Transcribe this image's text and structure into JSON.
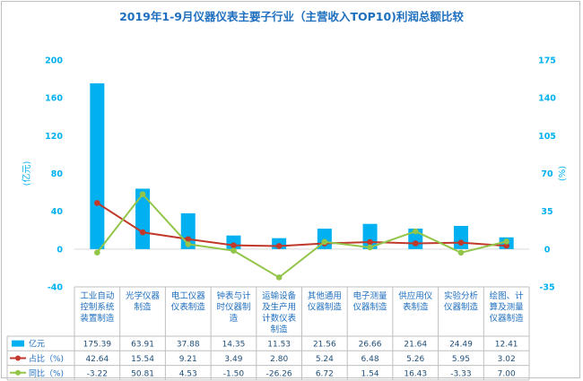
{
  "title": "2019年1-9月仪器仪表主要子行业（主营收入TOP10)利润总额比较",
  "chart_data": {
    "type": "bar",
    "title": "2019年1-9月仪器仪表主要子行业（主营收入TOP10)利润总额比较",
    "categories": [
      [
        "工业自动",
        "控制系统",
        "装置制造"
      ],
      [
        "光学仪器",
        "制造"
      ],
      [
        "电工仪器",
        "仪表制造"
      ],
      [
        "钟表与计",
        "时仪器制",
        "造"
      ],
      [
        "运输设备",
        "及生产用",
        "计数仪表",
        "制造"
      ],
      [
        "其他通用",
        "仪器制造"
      ],
      [
        "电子测量",
        "仪器制造"
      ],
      [
        "供应用仪",
        "表制造"
      ],
      [
        "实验分析",
        "仪器制造"
      ],
      [
        "绘图、计",
        "算及测量",
        "仪器制造"
      ]
    ],
    "ylabel_left": "(亿元)",
    "ylabel_right": "(%)",
    "ylim_left": [
      -40,
      200
    ],
    "yticks_left": [
      "200",
      "160",
      "120",
      "80",
      "40",
      "0",
      "-40"
    ],
    "ylim_right": [
      -35,
      175
    ],
    "yticks_right": [
      "175",
      "140",
      "105",
      "70",
      "35",
      "0",
      "-35"
    ],
    "legend_position": "table-left",
    "series": [
      {
        "name": "亿元",
        "type": "bar",
        "axis": "left",
        "color": "#00b0f0",
        "values": [
          175.39,
          63.91,
          37.88,
          14.35,
          11.53,
          21.56,
          26.66,
          21.64,
          24.49,
          12.41
        ],
        "labels": [
          "175.39",
          "63.91",
          "37.88",
          "14.35",
          "11.53",
          "21.56",
          "26.66",
          "21.64",
          "24.49",
          "12.41"
        ]
      },
      {
        "name": "占比（%)",
        "type": "line",
        "axis": "right",
        "color": "#c0392b",
        "values": [
          42.64,
          15.54,
          9.21,
          3.49,
          2.8,
          5.24,
          6.48,
          5.26,
          5.95,
          3.02
        ],
        "labels": [
          "42.64",
          "15.54",
          "9.21",
          "3.49",
          "2.80",
          "5.24",
          "6.48",
          "5.26",
          "5.95",
          "3.02"
        ]
      },
      {
        "name": "同比（%)",
        "type": "line",
        "axis": "right",
        "color": "#92c54a",
        "values": [
          -3.22,
          50.81,
          4.53,
          -1.5,
          -26.26,
          6.72,
          1.54,
          16.43,
          -3.33,
          7.0
        ],
        "labels": [
          "-3.22",
          "50.81",
          "4.53",
          "-1.50",
          "-26.26",
          "6.72",
          "1.54",
          "16.43",
          "-3.33",
          "7.00"
        ]
      }
    ]
  }
}
